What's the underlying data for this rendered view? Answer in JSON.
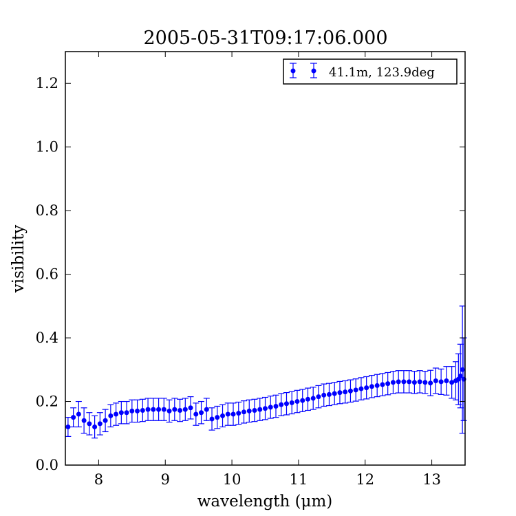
{
  "chart_data": {
    "type": "scatter",
    "title": "2005-05-31T09:17:06.000",
    "xlabel": "wavelength (μm)",
    "ylabel": "visibility",
    "xlim": [
      7.5,
      13.5
    ],
    "ylim": [
      0.0,
      1.3
    ],
    "xticks": [
      "8",
      "9",
      "10",
      "11",
      "12",
      "13"
    ],
    "yticks": [
      "0.0",
      "0.2",
      "0.4",
      "0.6",
      "0.8",
      "1.0",
      "1.2"
    ],
    "grid": false,
    "legend_position": "top-right",
    "series": [
      {
        "name": "41.1m, 123.9deg",
        "color": "#0000ff",
        "marker": "circle",
        "errorbars": true,
        "x": [
          7.54,
          7.62,
          7.7,
          7.78,
          7.86,
          7.94,
          8.02,
          8.1,
          8.18,
          8.26,
          8.34,
          8.42,
          8.5,
          8.58,
          8.66,
          8.74,
          8.82,
          8.9,
          8.98,
          9.06,
          9.14,
          9.22,
          9.3,
          9.38,
          9.46,
          9.54,
          9.62,
          9.7,
          9.78,
          9.86,
          9.94,
          10.02,
          10.1,
          10.18,
          10.26,
          10.34,
          10.42,
          10.5,
          10.58,
          10.66,
          10.74,
          10.82,
          10.9,
          10.98,
          11.06,
          11.14,
          11.22,
          11.3,
          11.38,
          11.46,
          11.54,
          11.62,
          11.7,
          11.78,
          11.86,
          11.94,
          12.02,
          12.1,
          12.18,
          12.26,
          12.34,
          12.42,
          12.5,
          12.58,
          12.66,
          12.74,
          12.82,
          12.9,
          12.98,
          13.06,
          13.14,
          13.22,
          13.3,
          13.36,
          13.4,
          13.43,
          13.46,
          13.48
        ],
        "y": [
          0.12,
          0.15,
          0.16,
          0.14,
          0.13,
          0.12,
          0.13,
          0.14,
          0.155,
          0.16,
          0.165,
          0.165,
          0.17,
          0.17,
          0.172,
          0.175,
          0.175,
          0.175,
          0.175,
          0.17,
          0.175,
          0.172,
          0.175,
          0.18,
          0.16,
          0.165,
          0.175,
          0.145,
          0.15,
          0.155,
          0.16,
          0.16,
          0.163,
          0.167,
          0.17,
          0.172,
          0.175,
          0.178,
          0.182,
          0.185,
          0.19,
          0.193,
          0.196,
          0.2,
          0.203,
          0.207,
          0.21,
          0.215,
          0.22,
          0.222,
          0.225,
          0.228,
          0.23,
          0.233,
          0.236,
          0.24,
          0.243,
          0.247,
          0.25,
          0.253,
          0.256,
          0.26,
          0.262,
          0.262,
          0.262,
          0.26,
          0.262,
          0.26,
          0.258,
          0.265,
          0.262,
          0.265,
          0.26,
          0.265,
          0.27,
          0.28,
          0.3,
          0.27
        ],
        "err": [
          0.03,
          0.03,
          0.04,
          0.04,
          0.035,
          0.035,
          0.035,
          0.035,
          0.035,
          0.035,
          0.035,
          0.035,
          0.035,
          0.035,
          0.035,
          0.035,
          0.035,
          0.035,
          0.035,
          0.035,
          0.035,
          0.035,
          0.035,
          0.035,
          0.035,
          0.035,
          0.035,
          0.035,
          0.035,
          0.035,
          0.035,
          0.035,
          0.035,
          0.035,
          0.035,
          0.035,
          0.035,
          0.035,
          0.035,
          0.035,
          0.035,
          0.035,
          0.035,
          0.035,
          0.035,
          0.035,
          0.035,
          0.035,
          0.035,
          0.035,
          0.035,
          0.035,
          0.035,
          0.035,
          0.035,
          0.035,
          0.035,
          0.035,
          0.035,
          0.035,
          0.035,
          0.035,
          0.035,
          0.035,
          0.035,
          0.035,
          0.035,
          0.035,
          0.04,
          0.04,
          0.04,
          0.045,
          0.05,
          0.06,
          0.08,
          0.1,
          0.2,
          0.13
        ]
      }
    ]
  }
}
